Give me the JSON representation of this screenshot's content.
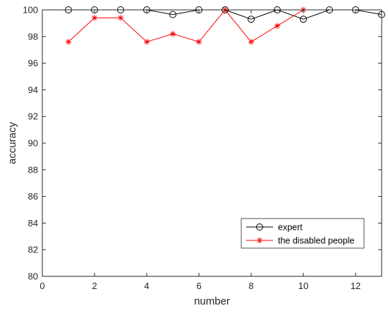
{
  "chart_data": {
    "type": "line",
    "xlabel": "number",
    "ylabel": "accuracy",
    "xlim": [
      0,
      13
    ],
    "ylim": [
      80,
      100
    ],
    "xticks": [
      0,
      2,
      4,
      6,
      8,
      10,
      12
    ],
    "yticks": [
      80,
      82,
      84,
      86,
      88,
      90,
      92,
      94,
      96,
      98,
      100
    ],
    "grid": false,
    "legend_position": "bottom-right",
    "series": [
      {
        "name": "expert",
        "color": "#000000",
        "marker": "circle",
        "x": [
          1,
          2,
          3,
          4,
          5,
          6,
          7,
          8,
          9,
          10,
          11,
          12,
          13
        ],
        "y": [
          100,
          100,
          100,
          100,
          99.65,
          100,
          100,
          99.3,
          100,
          99.3,
          100,
          100,
          99.65
        ]
      },
      {
        "name": "the disabled people",
        "color": "#ff0000",
        "marker": "star",
        "x": [
          1,
          2,
          3,
          4,
          5,
          6,
          7,
          8,
          9,
          10
        ],
        "y": [
          97.6,
          99.4,
          99.4,
          97.6,
          98.2,
          97.6,
          100,
          97.6,
          98.8,
          100
        ]
      }
    ]
  }
}
